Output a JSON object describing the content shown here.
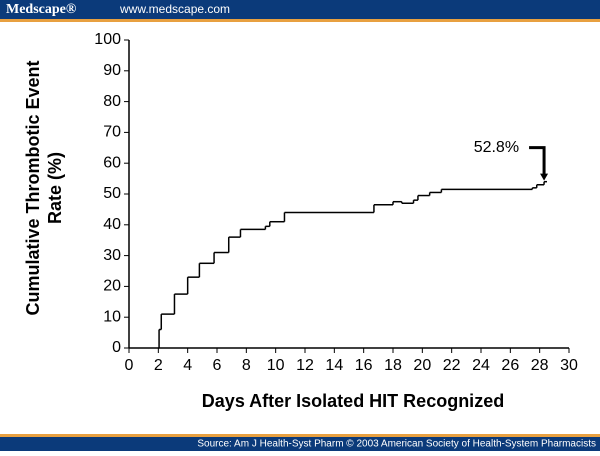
{
  "header": {
    "brand": "Medscape®",
    "url": "www.medscape.com"
  },
  "footer": {
    "source": "Source: Am J Health-Syst Pharm © 2003 American Society of Health-System Pharmacists"
  },
  "chart_data": {
    "type": "step",
    "x_label": "Days After Isolated HIT Recognized",
    "y_label": [
      "Cumulative Thrombotic Event",
      "Rate (%)"
    ],
    "annotation": {
      "text": "52.8%",
      "x": 28.3,
      "y": 54
    },
    "x": [
      2,
      2.05,
      2.2,
      3.1,
      4,
      4.8,
      5.8,
      6.8,
      7.6,
      9.3,
      9.6,
      10.6,
      16.7,
      18,
      18.6,
      19.4,
      19.7,
      20.5,
      21.3,
      27.5,
      27.8,
      28.3,
      28.5
    ],
    "values": [
      0,
      6,
      11,
      17.5,
      23,
      27.5,
      31,
      36,
      38.5,
      39.5,
      41,
      44,
      46.5,
      47.5,
      47,
      48,
      49.5,
      50.5,
      51.5,
      52,
      53,
      54,
      54
    ],
    "color": "#000000",
    "xlim": [
      0,
      30
    ],
    "xticks": [
      0,
      2,
      4,
      6,
      8,
      10,
      12,
      14,
      16,
      18,
      20,
      22,
      24,
      26,
      28,
      30
    ],
    "ylim": [
      0,
      100
    ],
    "yticks": [
      0,
      10,
      20,
      30,
      40,
      50,
      60,
      70,
      80,
      90,
      100
    ],
    "grid": false
  }
}
